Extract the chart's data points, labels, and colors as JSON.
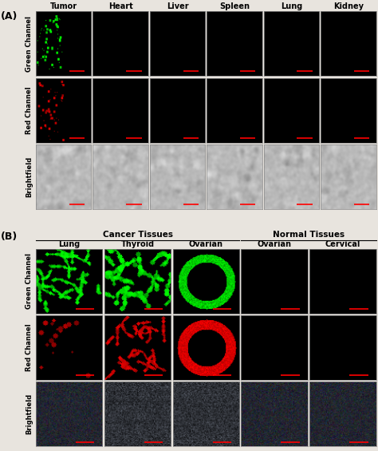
{
  "panel_A_label": "(A)",
  "panel_B_label": "(B)",
  "A_col_labels": [
    "Tumor",
    "Heart",
    "Liver",
    "Spleen",
    "Lung",
    "Kidney"
  ],
  "A_row_labels": [
    "Green Channel",
    "Red Channel",
    "Brightfield"
  ],
  "B_col_labels": [
    "Lung",
    "Thyroid",
    "Ovarian",
    "Ovarian",
    "Cervical"
  ],
  "B_row_labels": [
    "Green Channel",
    "Red Channel",
    "Brightfield"
  ],
  "B_group_labels": [
    "Cancer Tissues",
    "Normal Tissues"
  ],
  "bg_color": "#e8e4de",
  "title_fontsize": 7.0,
  "label_fontsize": 6.0,
  "panel_label_fontsize": 9
}
